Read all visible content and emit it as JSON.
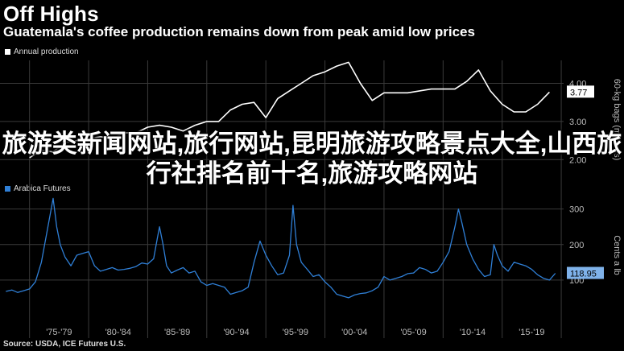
{
  "headline": "Off Highs",
  "subtitle": "Guatemala's coffee production remains down from peak amid low prices",
  "source": "Source: USDA, ICE Futures U.S.",
  "overlay_text": "旅游类新闻网站,旅行网站,昆明旅游攻略景点大全,山西旅行社排名前十名,旅游攻略网站",
  "colors": {
    "production": "#ffffff",
    "futures": "#2f7fd6",
    "grid": "#3a3a3a",
    "background": "#000000"
  },
  "x_ticks": [
    "'75-'79",
    "'80-'84",
    "'85-'89",
    "'90-'94",
    "'95-'99",
    "'00-'04",
    "'05-'09",
    "'10-'14",
    "'15-'19"
  ],
  "chart_data": [
    {
      "type": "line",
      "legend": "Annual production",
      "ylabel": "60-kg bags (millions)",
      "ylim": [
        1.5,
        4.6
      ],
      "yticks": [
        2.0,
        3.0,
        4.0
      ],
      "last_value_label": "3.77",
      "x": [
        1975,
        1976,
        1977,
        1978,
        1979,
        1980,
        1981,
        1982,
        1983,
        1984,
        1985,
        1986,
        1987,
        1988,
        1989,
        1990,
        1991,
        1992,
        1993,
        1994,
        1995,
        1996,
        1997,
        1998,
        1999,
        2000,
        2001,
        2002,
        2003,
        2004,
        2005,
        2006,
        2007,
        2008,
        2009,
        2010,
        2011,
        2012,
        2013,
        2014,
        2015,
        2016,
        2017,
        2018,
        2019
      ],
      "values": [
        2.05,
        2.25,
        2.2,
        2.45,
        2.5,
        2.55,
        2.6,
        2.55,
        2.7,
        2.7,
        2.85,
        2.9,
        2.85,
        2.75,
        2.9,
        3.0,
        3.0,
        3.3,
        3.45,
        3.5,
        3.1,
        3.6,
        3.8,
        4.0,
        4.2,
        4.3,
        4.45,
        4.55,
        4.0,
        3.55,
        3.75,
        3.75,
        3.75,
        3.8,
        3.85,
        3.85,
        3.85,
        4.05,
        4.35,
        3.8,
        3.45,
        3.25,
        3.25,
        3.45,
        3.77
      ]
    },
    {
      "type": "line",
      "legend": "Arabica Futures",
      "ylabel": "Cents a lb",
      "ylim": [
        0,
        340
      ],
      "yticks": [
        100,
        200,
        300
      ],
      "last_value_label": "118.95",
      "x": [
        1973.0,
        1973.5,
        1974.0,
        1974.5,
        1975.0,
        1975.5,
        1976.0,
        1976.5,
        1977.0,
        1977.3,
        1977.6,
        1978.0,
        1978.5,
        1979.0,
        1979.5,
        1980.0,
        1980.5,
        1981.0,
        1981.5,
        1982.0,
        1982.5,
        1983.0,
        1983.5,
        1984.0,
        1984.5,
        1985.0,
        1985.5,
        1985.8,
        1986.0,
        1986.3,
        1986.6,
        1987.0,
        1987.5,
        1988.0,
        1988.5,
        1989.0,
        1989.5,
        1990.0,
        1990.5,
        1991.0,
        1991.5,
        1992.0,
        1992.5,
        1993.0,
        1993.5,
        1994.0,
        1994.5,
        1995.0,
        1995.5,
        1996.0,
        1996.5,
        1997.0,
        1997.3,
        1997.6,
        1998.0,
        1998.5,
        1999.0,
        1999.5,
        2000.0,
        2000.5,
        2001.0,
        2001.5,
        2002.0,
        2002.5,
        2003.0,
        2003.5,
        2004.0,
        2004.5,
        2005.0,
        2005.5,
        2006.0,
        2006.5,
        2007.0,
        2007.5,
        2008.0,
        2008.5,
        2009.0,
        2009.5,
        2010.0,
        2010.5,
        2011.0,
        2011.3,
        2011.6,
        2012.0,
        2012.5,
        2013.0,
        2013.5,
        2014.0,
        2014.3,
        2014.6,
        2015.0,
        2015.5,
        2016.0,
        2016.5,
        2017.0,
        2017.5,
        2018.0,
        2018.5,
        2019.0,
        2019.5
      ],
      "values": [
        68,
        72,
        65,
        70,
        75,
        95,
        150,
        240,
        330,
        250,
        200,
        165,
        140,
        170,
        175,
        180,
        140,
        125,
        130,
        135,
        128,
        130,
        133,
        138,
        148,
        145,
        160,
        215,
        250,
        200,
        140,
        120,
        128,
        135,
        120,
        125,
        95,
        85,
        90,
        85,
        80,
        60,
        65,
        70,
        80,
        150,
        210,
        170,
        140,
        115,
        120,
        170,
        310,
        200,
        150,
        130,
        110,
        115,
        95,
        80,
        60,
        55,
        50,
        58,
        62,
        64,
        70,
        80,
        110,
        100,
        105,
        110,
        118,
        120,
        135,
        130,
        120,
        125,
        150,
        180,
        250,
        300,
        260,
        200,
        160,
        130,
        110,
        115,
        200,
        170,
        140,
        125,
        150,
        145,
        140,
        130,
        115,
        105,
        100,
        118.95
      ]
    }
  ]
}
